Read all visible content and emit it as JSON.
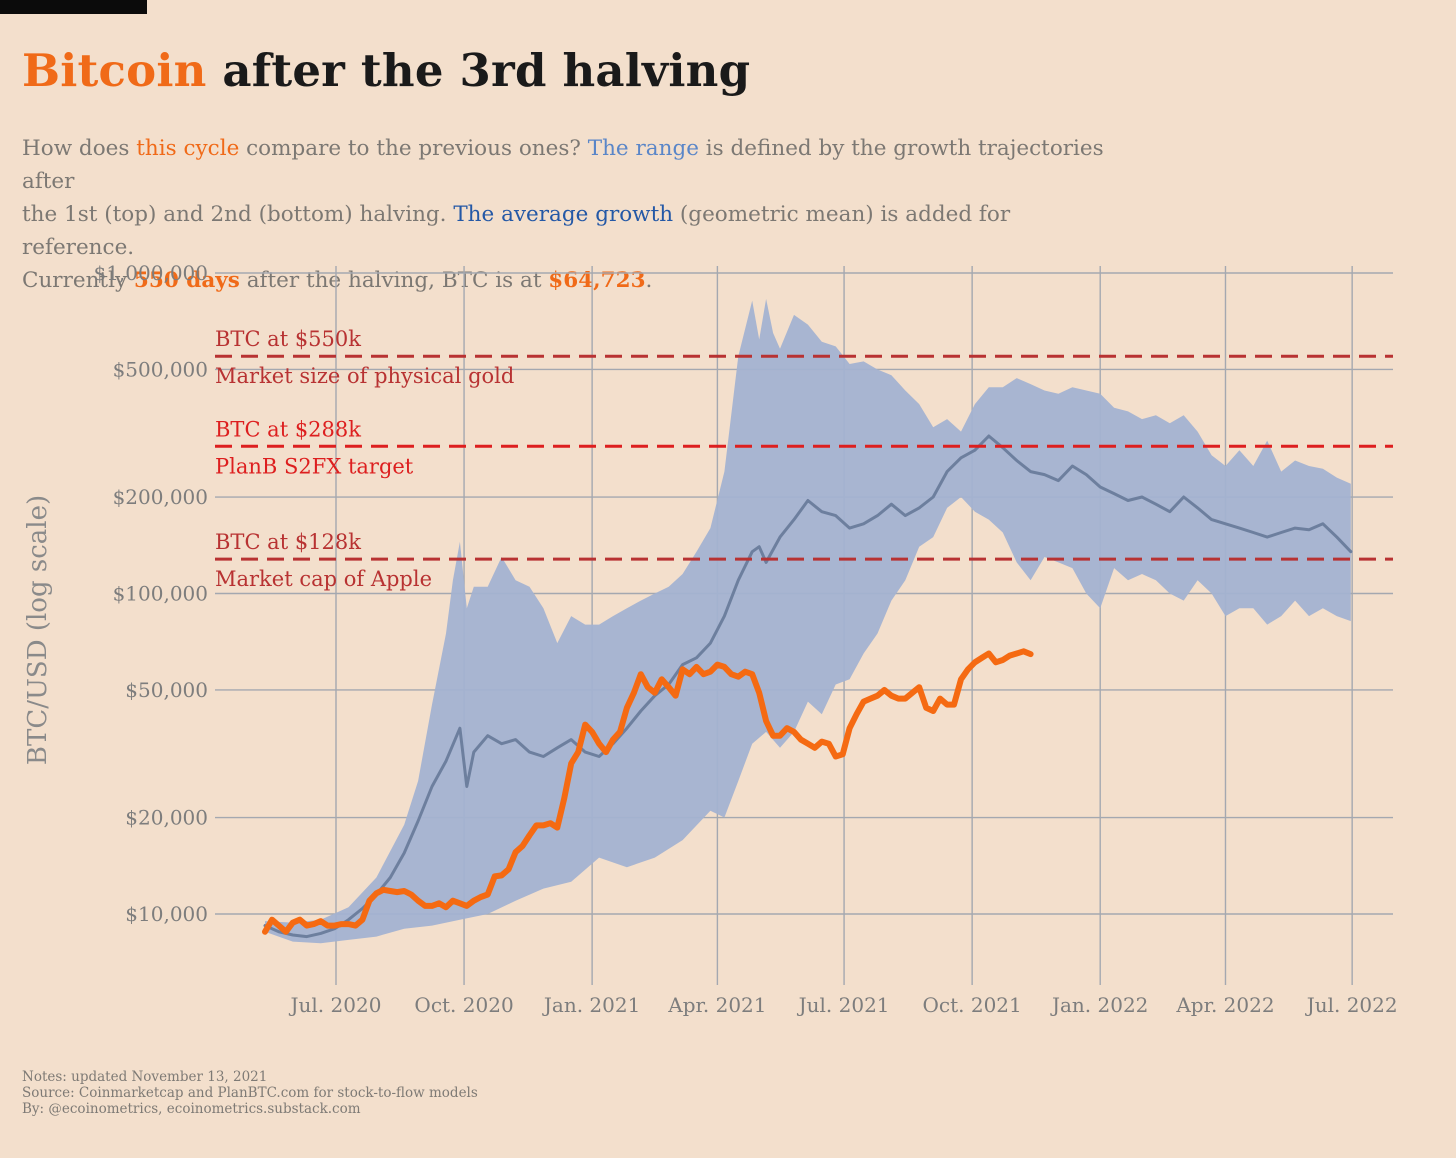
{
  "title": {
    "accent": "Bitcoin",
    "rest": " after the 3rd halving"
  },
  "subtitle": {
    "l1a": "How does ",
    "l1b": "this cycle",
    "l1c": " compare to the previous ones? ",
    "l1d": "The range",
    "l1e": " is defined by the growth trajectories after",
    "l2a": "the 1st (top) and 2nd (bottom) halving. ",
    "l2b": "The average growth",
    "l2c": " (geometric mean) is added for reference.",
    "l3a": "Currently ",
    "l3b": "550 days",
    "l3c": " after the halving, BTC is at ",
    "l3d": "$64,723",
    "l3e": "."
  },
  "notes": {
    "l1": "Notes: updated November 13, 2021",
    "l2": "Source: Coinmarketcap and PlanBTC.com for stock-to-flow models",
    "l3": "By: @ecoinometrics, ecoinometrics.substack.com"
  },
  "colors": {
    "background": "#f3dfcc",
    "orange": "#f56a12",
    "range": "#a3b2d1",
    "average": "#6d7f9e",
    "grid": "#a4a8b0",
    "gold_line": "#b83232",
    "s2fx_line": "#dd1f1f",
    "apple_line": "#b83232"
  },
  "chart_data": {
    "type": "line",
    "title": "Bitcoin after the 3rd halving",
    "ylabel": "BTC/USD (log scale)",
    "yscale": "log",
    "ylim": [
      7000,
      1000000
    ],
    "xlim_days": [
      -40,
      800
    ],
    "y_ticks": [
      {
        "value": 10000,
        "label": "$10,000"
      },
      {
        "value": 20000,
        "label": "$20,000"
      },
      {
        "value": 50000,
        "label": "$50,000"
      },
      {
        "value": 100000,
        "label": "$100,000"
      },
      {
        "value": 200000,
        "label": "$200,000"
      },
      {
        "value": 500000,
        "label": "$500,000"
      },
      {
        "value": 1000000,
        "label": "$1,000,000"
      }
    ],
    "x_ticks": [
      {
        "day": 51,
        "label": "Jul. 2020"
      },
      {
        "day": 143,
        "label": "Oct. 2020"
      },
      {
        "day": 235,
        "label": "Jan. 2021"
      },
      {
        "day": 325,
        "label": "Apr. 2021"
      },
      {
        "day": 416,
        "label": "Jul. 2021"
      },
      {
        "day": 508,
        "label": "Oct. 2021"
      },
      {
        "day": 600,
        "label": "Jan. 2022"
      },
      {
        "day": 690,
        "label": "Apr. 2022"
      },
      {
        "day": 781,
        "label": "Jul. 2022"
      }
    ],
    "reference_lines": [
      {
        "name": "gold",
        "value": 550000,
        "label_top": "BTC at $550k",
        "label_bottom": "Market size of physical gold"
      },
      {
        "name": "s2fx",
        "value": 288000,
        "label_top": "BTC at $288k",
        "label_bottom": "PlanB S2FX target"
      },
      {
        "name": "apple",
        "value": 128000,
        "label_top": "BTC at $128k",
        "label_bottom": "Market cap of Apple"
      }
    ],
    "series": [
      {
        "name": "this cycle",
        "x": [
          0,
          5,
          10,
          15,
          20,
          25,
          30,
          35,
          40,
          45,
          50,
          55,
          60,
          65,
          70,
          75,
          80,
          85,
          90,
          95,
          100,
          105,
          110,
          115,
          120,
          125,
          130,
          135,
          140,
          145,
          150,
          155,
          160,
          165,
          170,
          175,
          180,
          185,
          190,
          195,
          200,
          205,
          210,
          215,
          220,
          225,
          230,
          235,
          240,
          245,
          250,
          255,
          260,
          265,
          270,
          275,
          280,
          285,
          290,
          295,
          300,
          305,
          310,
          315,
          320,
          325,
          330,
          335,
          340,
          345,
          350,
          355,
          360,
          365,
          370,
          375,
          380,
          385,
          390,
          395,
          400,
          405,
          410,
          415,
          420,
          425,
          430,
          435,
          440,
          445,
          450,
          455,
          460,
          465,
          470,
          475,
          480,
          485,
          490,
          495,
          500,
          505,
          510,
          515,
          520,
          525,
          530,
          535,
          540,
          545,
          550
        ],
        "values": [
          8800,
          9600,
          9200,
          8800,
          9400,
          9600,
          9200,
          9300,
          9500,
          9200,
          9200,
          9300,
          9300,
          9200,
          9600,
          11000,
          11600,
          11900,
          11800,
          11700,
          11800,
          11500,
          11000,
          10600,
          10600,
          10800,
          10500,
          11000,
          10800,
          10600,
          11000,
          11300,
          11500,
          13100,
          13200,
          13800,
          15600,
          16300,
          17600,
          18900,
          18900,
          19200,
          18600,
          23000,
          29500,
          32000,
          39000,
          37000,
          34000,
          32000,
          35000,
          37000,
          44000,
          49000,
          56000,
          51000,
          49000,
          54000,
          51000,
          48000,
          58000,
          56000,
          59000,
          56000,
          57000,
          60000,
          59000,
          56000,
          55000,
          57000,
          56000,
          49000,
          40000,
          36000,
          36000,
          38000,
          37000,
          35000,
          34000,
          33000,
          34500,
          34000,
          31000,
          31500,
          38000,
          42000,
          46000,
          47000,
          48000,
          50000,
          48000,
          47000,
          47000,
          49000,
          51000,
          44000,
          43000,
          47000,
          45000,
          45000,
          54000,
          58000,
          61000,
          63000,
          65000,
          61000,
          62000,
          64000,
          65000,
          66000,
          64723
        ]
      },
      {
        "name": "average growth",
        "x": [
          0,
          10,
          20,
          30,
          40,
          50,
          60,
          70,
          80,
          90,
          100,
          110,
          120,
          130,
          140,
          145,
          150,
          160,
          170,
          180,
          190,
          200,
          210,
          220,
          230,
          240,
          250,
          260,
          270,
          280,
          290,
          300,
          310,
          320,
          330,
          340,
          350,
          355,
          360,
          370,
          380,
          390,
          400,
          410,
          420,
          430,
          440,
          450,
          460,
          470,
          480,
          490,
          500,
          510,
          520,
          530,
          540,
          550,
          560,
          570,
          580,
          590,
          600,
          610,
          620,
          630,
          640,
          650,
          660,
          670,
          680,
          690,
          700,
          710,
          720,
          730,
          740,
          750,
          760,
          770,
          780
        ],
        "values": [
          9200,
          8800,
          8600,
          8500,
          8700,
          9000,
          9600,
          10400,
          11500,
          13000,
          15500,
          19500,
          25000,
          30000,
          38000,
          25000,
          32000,
          36000,
          34000,
          35000,
          32000,
          31000,
          33000,
          35000,
          32000,
          31000,
          34000,
          38000,
          43000,
          48000,
          52000,
          60000,
          63000,
          70000,
          85000,
          110000,
          135000,
          140000,
          125000,
          150000,
          170000,
          195000,
          180000,
          175000,
          160000,
          165000,
          175000,
          190000,
          175000,
          185000,
          200000,
          240000,
          265000,
          280000,
          310000,
          285000,
          260000,
          240000,
          235000,
          225000,
          250000,
          235000,
          215000,
          205000,
          195000,
          200000,
          190000,
          180000,
          200000,
          185000,
          170000,
          165000,
          160000,
          155000,
          150000,
          155000,
          160000,
          158000,
          165000,
          150000,
          135000
        ]
      },
      {
        "name": "range (top)",
        "x": [
          0,
          20,
          40,
          60,
          80,
          100,
          110,
          120,
          130,
          135,
          140,
          145,
          150,
          160,
          170,
          180,
          190,
          200,
          210,
          220,
          230,
          240,
          250,
          260,
          270,
          280,
          290,
          300,
          310,
          320,
          330,
          340,
          350,
          355,
          360,
          365,
          370,
          380,
          390,
          400,
          410,
          420,
          430,
          440,
          450,
          460,
          470,
          480,
          490,
          500,
          510,
          520,
          530,
          540,
          550,
          560,
          570,
          580,
          590,
          600,
          610,
          620,
          630,
          640,
          650,
          660,
          670,
          680,
          690,
          700,
          710,
          720,
          730,
          740,
          750,
          760,
          770,
          780
        ],
        "values": [
          9500,
          9400,
          9600,
          10500,
          13000,
          19000,
          26000,
          45000,
          75000,
          110000,
          145000,
          90000,
          105000,
          105000,
          130000,
          110000,
          105000,
          90000,
          70000,
          85000,
          80000,
          80000,
          85000,
          90000,
          95000,
          100000,
          105000,
          115000,
          135000,
          160000,
          240000,
          550000,
          820000,
          620000,
          830000,
          650000,
          580000,
          740000,
          690000,
          610000,
          590000,
          520000,
          530000,
          500000,
          480000,
          430000,
          390000,
          330000,
          350000,
          320000,
          390000,
          440000,
          440000,
          470000,
          450000,
          430000,
          420000,
          440000,
          430000,
          420000,
          380000,
          370000,
          350000,
          360000,
          340000,
          360000,
          320000,
          270000,
          250000,
          280000,
          250000,
          300000,
          240000,
          260000,
          250000,
          245000,
          230000,
          220000
        ]
      },
      {
        "name": "range (bottom)",
        "x": [
          0,
          20,
          40,
          60,
          80,
          100,
          120,
          140,
          160,
          180,
          200,
          220,
          240,
          260,
          280,
          300,
          320,
          330,
          340,
          350,
          360,
          370,
          380,
          390,
          400,
          410,
          420,
          430,
          440,
          450,
          460,
          470,
          480,
          490,
          500,
          510,
          520,
          530,
          540,
          550,
          560,
          570,
          580,
          590,
          600,
          610,
          620,
          630,
          640,
          650,
          660,
          670,
          680,
          690,
          700,
          710,
          720,
          730,
          740,
          750,
          760,
          770,
          780
        ],
        "values": [
          8800,
          8200,
          8100,
          8300,
          8500,
          9000,
          9200,
          9600,
          10000,
          11000,
          12000,
          12600,
          15000,
          14000,
          15000,
          17000,
          21000,
          20000,
          26000,
          34000,
          37000,
          33000,
          37000,
          46000,
          42000,
          52000,
          54000,
          65000,
          75000,
          95000,
          110000,
          140000,
          150000,
          185000,
          200000,
          180000,
          170000,
          155000,
          125000,
          110000,
          130000,
          125000,
          120000,
          100000,
          90000,
          120000,
          110000,
          115000,
          110000,
          100000,
          95000,
          110000,
          100000,
          85000,
          90000,
          90000,
          80000,
          85000,
          95000,
          85000,
          90000,
          85000,
          82000
        ]
      }
    ]
  }
}
